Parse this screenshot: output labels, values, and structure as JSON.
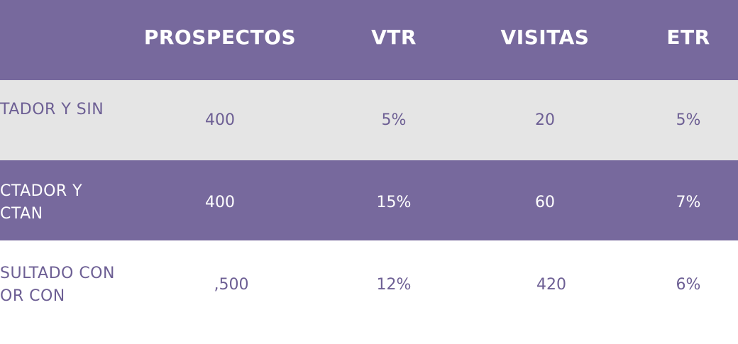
{
  "header": {
    "columns": [
      "PROSPECTOS",
      "VTR",
      "VISITAS",
      "ETR"
    ]
  },
  "rows": [
    {
      "label_line1": "TADOR Y SIN",
      "label_line2": "",
      "prospectos": "400",
      "vtr": "5%",
      "visitas": "20",
      "etr": "5%"
    },
    {
      "label_line1": "CTADOR Y",
      "label_line2": "CTAN",
      "prospectos": "400",
      "vtr": "15%",
      "visitas": "60",
      "etr": "7%"
    },
    {
      "label_line1": "SULTADO CON",
      "label_line2": "OR CON",
      "prospectos": ",500",
      "vtr": "12%",
      "visitas": "420",
      "etr": "6%"
    }
  ],
  "colors": {
    "header_bg": "#77699d",
    "row_alt_bg": "#e5e5e5",
    "text_purple": "#6d5f94",
    "text_white": "#ffffff"
  }
}
